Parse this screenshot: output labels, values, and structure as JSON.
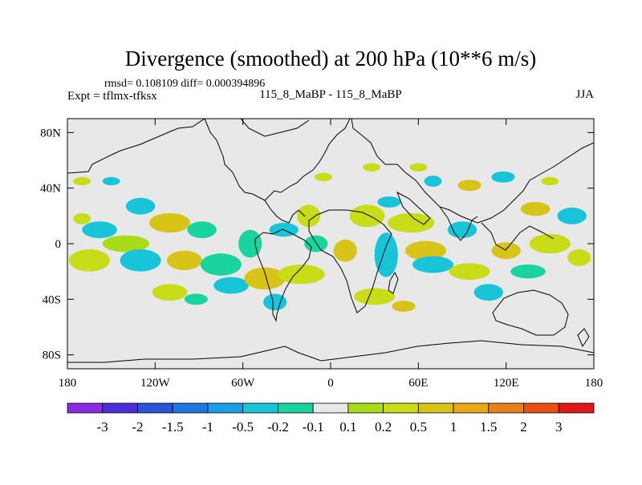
{
  "chart_data": {
    "type": "heatmap",
    "title": "Divergence (smoothed) at 200 hPa (10**6 m/s)",
    "stats_line": "rmsd= 0.108109 diff= 0.000394896",
    "expt_label": "Expt = tflmx-tfksx",
    "center_label": "115_8_MaBP - 115_8_MaBP",
    "season": "JJA",
    "x_ticks": [
      {
        "value": -180,
        "label": "180"
      },
      {
        "value": -120,
        "label": "120W"
      },
      {
        "value": -60,
        "label": "60W"
      },
      {
        "value": 0,
        "label": "0"
      },
      {
        "value": 60,
        "label": "60E"
      },
      {
        "value": 120,
        "label": "120E"
      },
      {
        "value": 180,
        "label": "180"
      }
    ],
    "y_ticks": [
      {
        "value": 80,
        "label": "80N"
      },
      {
        "value": 40,
        "label": "40N"
      },
      {
        "value": 0,
        "label": "0"
      },
      {
        "value": -40,
        "label": "40S"
      },
      {
        "value": -80,
        "label": "80S"
      }
    ],
    "xlim": [
      -180,
      180
    ],
    "ylim": [
      -90,
      90
    ],
    "colorbar": {
      "colors": [
        "#8a2be2",
        "#4b2fd8",
        "#2a55d8",
        "#1f78e0",
        "#1a9ee8",
        "#17c4d8",
        "#1ad4a0",
        "#e8e8e8",
        "#a8dc18",
        "#c8dc18",
        "#d8c418",
        "#e8a818",
        "#e88018",
        "#e85018",
        "#e01818"
      ],
      "labels": [
        "-3",
        "-2",
        "-1.5",
        "-1",
        "-0.5",
        "-0.2",
        "-0.1",
        "0.1",
        "0.2",
        "0.5",
        "1",
        "1.5",
        "2",
        "3"
      ]
    },
    "blobs": [
      {
        "lon": -170,
        "lat": 45,
        "rx": 6,
        "ry": 3,
        "level": 9
      },
      {
        "lon": -150,
        "lat": 45,
        "rx": 6,
        "ry": 3,
        "level": 5
      },
      {
        "lon": -170,
        "lat": 18,
        "rx": 6,
        "ry": 4,
        "level": 9
      },
      {
        "lon": -130,
        "lat": 27,
        "rx": 10,
        "ry": 6,
        "level": 5
      },
      {
        "lon": -158,
        "lat": 10,
        "rx": 12,
        "ry": 6,
        "level": 5
      },
      {
        "lon": -110,
        "lat": 15,
        "rx": 14,
        "ry": 7,
        "level": 10
      },
      {
        "lon": -140,
        "lat": 0,
        "rx": 16,
        "ry": 6,
        "level": 8
      },
      {
        "lon": -88,
        "lat": 10,
        "rx": 10,
        "ry": 6,
        "level": 6
      },
      {
        "lon": -165,
        "lat": -12,
        "rx": 14,
        "ry": 8,
        "level": 9
      },
      {
        "lon": -130,
        "lat": -12,
        "rx": 14,
        "ry": 8,
        "level": 5
      },
      {
        "lon": -100,
        "lat": -12,
        "rx": 12,
        "ry": 7,
        "level": 10
      },
      {
        "lon": -75,
        "lat": -15,
        "rx": 14,
        "ry": 8,
        "level": 6
      },
      {
        "lon": -110,
        "lat": -35,
        "rx": 12,
        "ry": 6,
        "level": 9
      },
      {
        "lon": -68,
        "lat": -30,
        "rx": 12,
        "ry": 6,
        "level": 5
      },
      {
        "lon": -45,
        "lat": -25,
        "rx": 14,
        "ry": 8,
        "level": 10
      },
      {
        "lon": -20,
        "lat": -22,
        "rx": 16,
        "ry": 7,
        "level": 9
      },
      {
        "lon": -38,
        "lat": -42,
        "rx": 8,
        "ry": 6,
        "level": 5
      },
      {
        "lon": -55,
        "lat": 0,
        "rx": 8,
        "ry": 10,
        "level": 6
      },
      {
        "lon": -32,
        "lat": 10,
        "rx": 10,
        "ry": 5,
        "level": 5
      },
      {
        "lon": -15,
        "lat": 20,
        "rx": 8,
        "ry": 8,
        "level": 9
      },
      {
        "lon": -10,
        "lat": 0,
        "rx": 8,
        "ry": 6,
        "level": 6
      },
      {
        "lon": 10,
        "lat": -5,
        "rx": 8,
        "ry": 8,
        "level": 10
      },
      {
        "lon": 25,
        "lat": 20,
        "rx": 12,
        "ry": 8,
        "level": 9
      },
      {
        "lon": 38,
        "lat": -8,
        "rx": 8,
        "ry": 16,
        "level": 5
      },
      {
        "lon": 30,
        "lat": -38,
        "rx": 14,
        "ry": 6,
        "level": 9
      },
      {
        "lon": 55,
        "lat": 15,
        "rx": 16,
        "ry": 7,
        "level": 9
      },
      {
        "lon": 65,
        "lat": -5,
        "rx": 14,
        "ry": 7,
        "level": 10
      },
      {
        "lon": 70,
        "lat": -15,
        "rx": 14,
        "ry": 6,
        "level": 5
      },
      {
        "lon": 95,
        "lat": -20,
        "rx": 14,
        "ry": 6,
        "level": 9
      },
      {
        "lon": 108,
        "lat": -35,
        "rx": 10,
        "ry": 6,
        "level": 5
      },
      {
        "lon": 120,
        "lat": -5,
        "rx": 10,
        "ry": 6,
        "level": 10
      },
      {
        "lon": 150,
        "lat": 0,
        "rx": 14,
        "ry": 7,
        "level": 9
      },
      {
        "lon": 165,
        "lat": 20,
        "rx": 10,
        "ry": 6,
        "level": 5
      },
      {
        "lon": 170,
        "lat": -10,
        "rx": 8,
        "ry": 6,
        "level": 9
      },
      {
        "lon": 135,
        "lat": -20,
        "rx": 12,
        "ry": 5,
        "level": 6
      },
      {
        "lon": 150,
        "lat": 45,
        "rx": 6,
        "ry": 3,
        "level": 9
      },
      {
        "lon": 118,
        "lat": 48,
        "rx": 8,
        "ry": 4,
        "level": 5
      },
      {
        "lon": 95,
        "lat": 42,
        "rx": 8,
        "ry": 4,
        "level": 10
      },
      {
        "lon": 70,
        "lat": 45,
        "rx": 6,
        "ry": 4,
        "level": 5
      },
      {
        "lon": 60,
        "lat": 55,
        "rx": 6,
        "ry": 3,
        "level": 9
      },
      {
        "lon": 28,
        "lat": 55,
        "rx": 6,
        "ry": 3,
        "level": 9
      },
      {
        "lon": -5,
        "lat": 48,
        "rx": 6,
        "ry": 3,
        "level": 9
      },
      {
        "lon": 40,
        "lat": 30,
        "rx": 8,
        "ry": 4,
        "level": 5
      },
      {
        "lon": 90,
        "lat": 10,
        "rx": 10,
        "ry": 6,
        "level": 5
      },
      {
        "lon": 140,
        "lat": 25,
        "rx": 10,
        "ry": 5,
        "level": 10
      },
      {
        "lon": -92,
        "lat": -40,
        "rx": 8,
        "ry": 4,
        "level": 6
      },
      {
        "lon": 50,
        "lat": -45,
        "rx": 8,
        "ry": 4,
        "level": 10
      }
    ]
  }
}
